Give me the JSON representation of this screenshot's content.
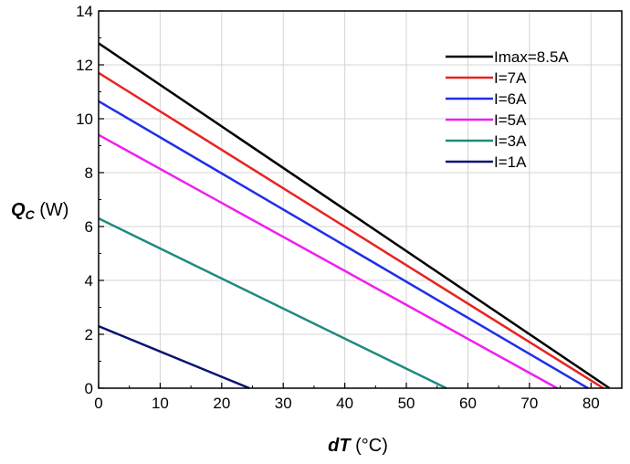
{
  "chart_data": {
    "type": "line",
    "xlabel": {
      "symbol": "dT",
      "unit": " (°C)"
    },
    "ylabel": {
      "symbol": "Q",
      "subscript": "C",
      "unit": " (W)"
    },
    "xlim": [
      0,
      85
    ],
    "ylim": [
      0,
      14
    ],
    "xticks": [
      0,
      10,
      20,
      30,
      40,
      50,
      60,
      70,
      80
    ],
    "yticks": [
      0,
      2,
      4,
      6,
      8,
      10,
      12,
      14
    ],
    "grid": true,
    "legend_position": "top-right",
    "series": [
      {
        "name": "Imax=8.5A",
        "color": "#000000",
        "x": [
          0,
          83
        ],
        "y": [
          12.8,
          0
        ]
      },
      {
        "name": "I=7A",
        "color": "#e8231f",
        "x": [
          0,
          82
        ],
        "y": [
          11.7,
          0
        ]
      },
      {
        "name": "I=6A",
        "color": "#1f2fe8",
        "x": [
          0,
          79.5
        ],
        "y": [
          10.65,
          0
        ]
      },
      {
        "name": "I=5A",
        "color": "#f01ef0",
        "x": [
          0,
          74.5
        ],
        "y": [
          9.4,
          0
        ]
      },
      {
        "name": "I=3A",
        "color": "#1f8a80",
        "x": [
          0,
          56.5
        ],
        "y": [
          6.3,
          0
        ]
      },
      {
        "name": "I=1A",
        "color": "#0a1470",
        "x": [
          0,
          24.5
        ],
        "y": [
          2.3,
          0
        ]
      }
    ]
  }
}
